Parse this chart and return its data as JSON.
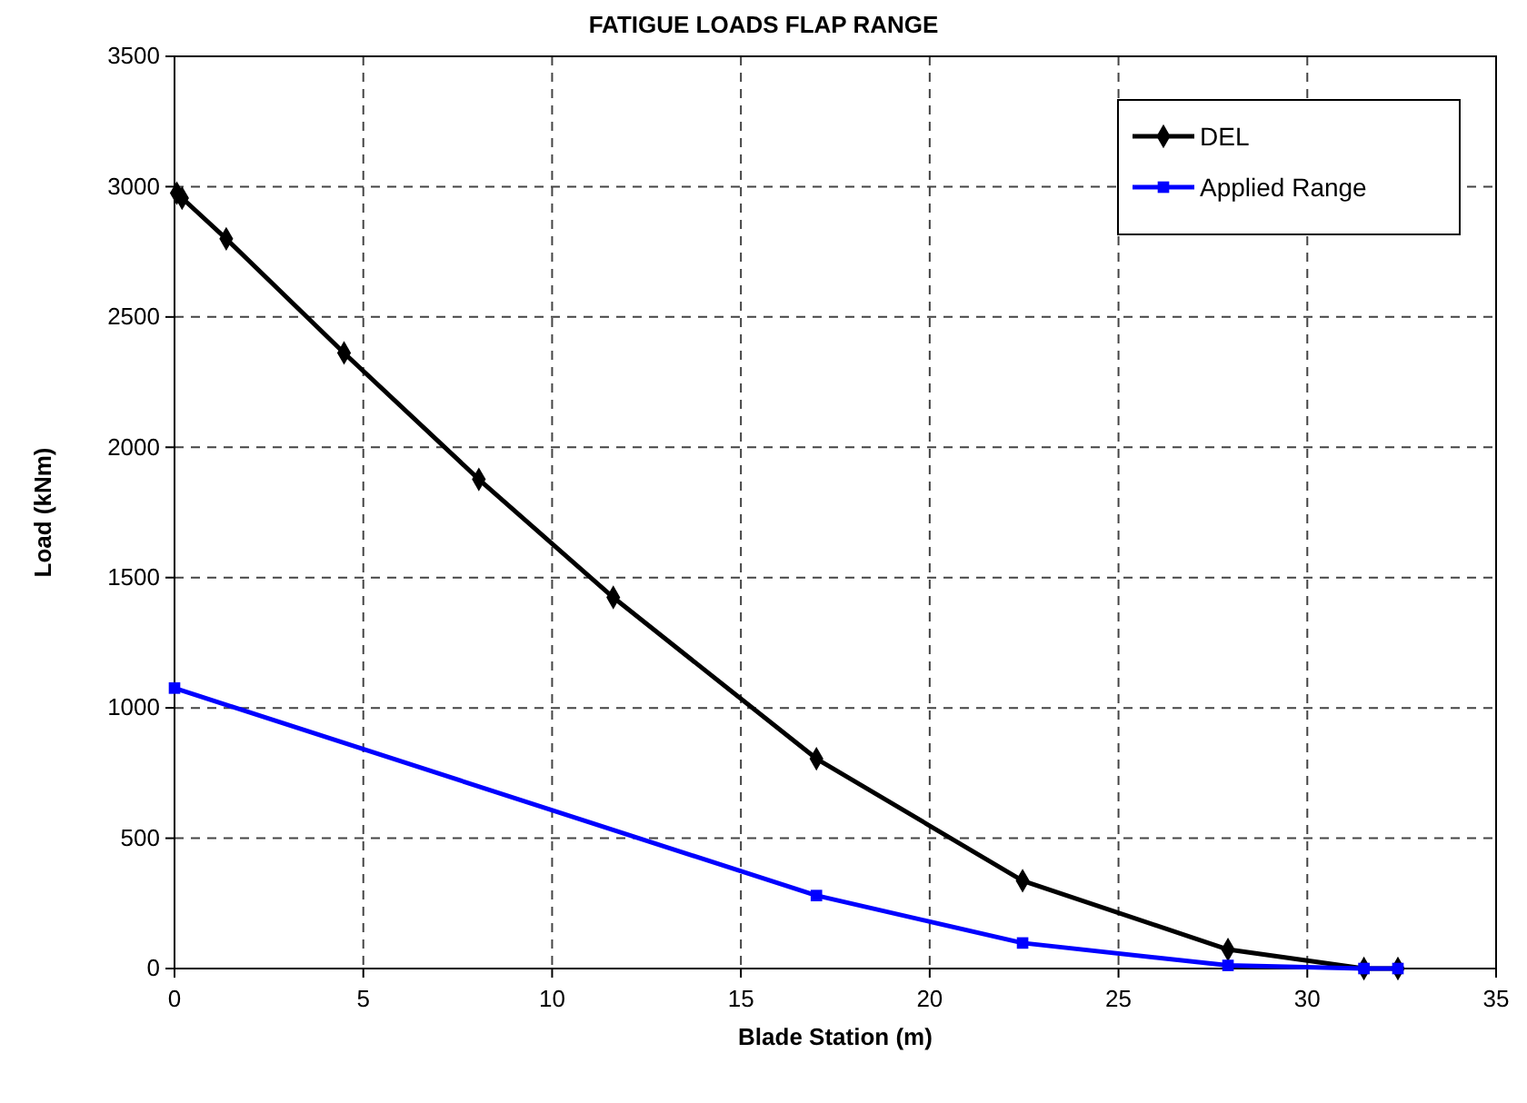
{
  "chart_data": {
    "type": "line",
    "title": "FATIGUE LOADS FLAP RANGE",
    "xlabel": "Blade Station (m)",
    "ylabel": "Load (kNm)",
    "xlim": [
      0,
      35
    ],
    "xticks": [
      0,
      5,
      10,
      15,
      20,
      25,
      30,
      35
    ],
    "ylim": [
      0,
      3500
    ],
    "yticks": [
      0,
      500,
      1000,
      1500,
      2000,
      2500,
      3000,
      3500
    ],
    "grid": true,
    "legend": "top right",
    "line_style": "solid",
    "series": [
      {
        "name": "DEL",
        "color": "#000000",
        "marker": "diamond",
        "x": [
          0.06,
          0.2,
          1.37,
          4.49,
          8.06,
          11.62,
          17.0,
          22.46,
          27.9,
          31.5,
          32.4
        ],
        "values": [
          2975,
          2956,
          2800,
          2362,
          1877,
          1424,
          805,
          337,
          73,
          0,
          0
        ]
      },
      {
        "name": "Applied Range",
        "color": "#0000ff",
        "marker": "square",
        "x": [
          0,
          17.0,
          22.46,
          27.9,
          31.5,
          32.4
        ],
        "values": [
          1076,
          280,
          98,
          12,
          0,
          0
        ]
      }
    ]
  }
}
